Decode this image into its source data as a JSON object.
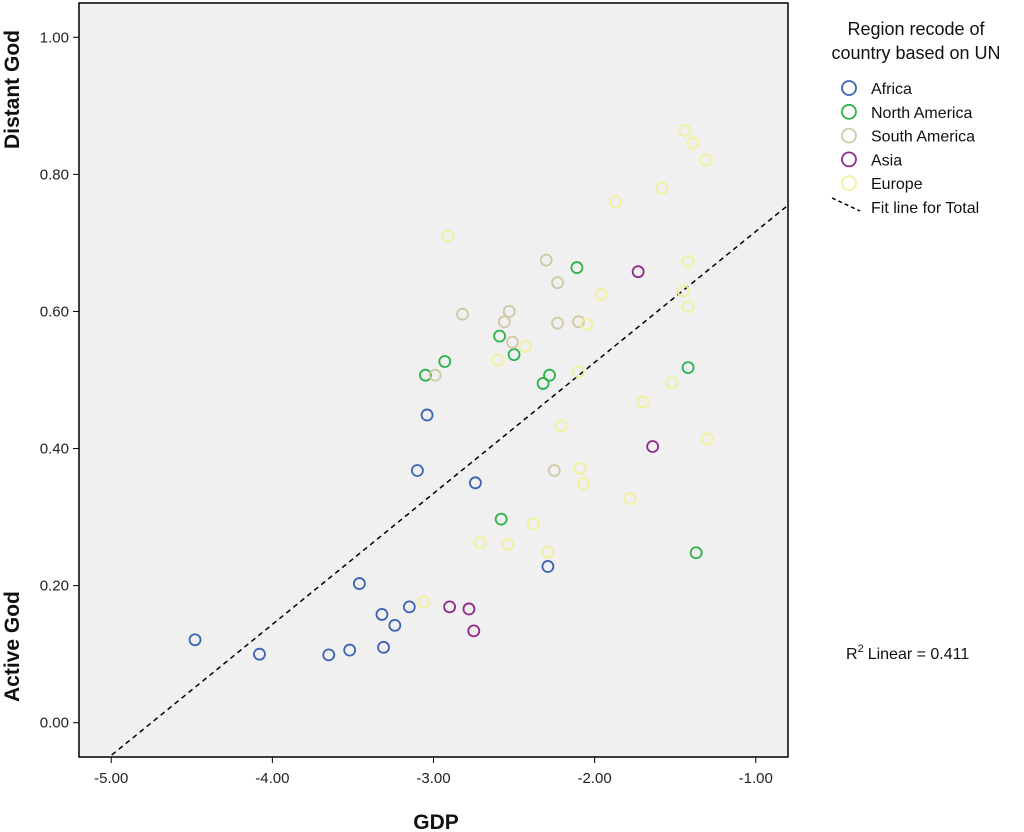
{
  "chart_data": {
    "type": "scatter",
    "title": "",
    "xlabel": "GDP",
    "ylabel_top": "Distant God",
    "ylabel_bottom": "Active God",
    "xlim": [
      -5.2,
      -0.8
    ],
    "ylim": [
      -0.05,
      1.05
    ],
    "x_ticks": [
      -5.0,
      -4.0,
      -3.0,
      -2.0,
      -1.0
    ],
    "x_tick_labels": [
      "-5.00",
      "-4.00",
      "-3.00",
      "-2.00",
      "-1.00"
    ],
    "y_ticks": [
      0.0,
      0.2,
      0.4,
      0.6,
      0.8,
      1.0
    ],
    "y_tick_labels": [
      "0.00",
      "0.20",
      "0.40",
      "0.60",
      "0.80",
      "1.00"
    ],
    "legend_title": [
      "Region recode of",
      "country based on UN"
    ],
    "legend_fit_label": "Fit line for Total",
    "r2_label": "Linear = 0.411",
    "r2_symbol": "R",
    "r2_superscript": "2",
    "fit_line": {
      "x": [
        -5.3,
        -0.8
      ],
      "y": [
        -0.105,
        0.755
      ]
    },
    "series": [
      {
        "name": "Africa",
        "color": "#3c64b4",
        "points": [
          [
            -4.48,
            0.121
          ],
          [
            -4.08,
            0.1
          ],
          [
            -3.65,
            0.099
          ],
          [
            -3.52,
            0.106
          ],
          [
            -3.46,
            0.203
          ],
          [
            -3.32,
            0.158
          ],
          [
            -3.31,
            0.11
          ],
          [
            -3.24,
            0.142
          ],
          [
            -3.15,
            0.169
          ],
          [
            -3.1,
            0.368
          ],
          [
            -3.04,
            0.449
          ],
          [
            -2.74,
            0.35
          ],
          [
            -2.29,
            0.228
          ]
        ]
      },
      {
        "name": "North America",
        "color": "#2ab34a",
        "points": [
          [
            -3.05,
            0.507
          ],
          [
            -2.93,
            0.527
          ],
          [
            -2.59,
            0.564
          ],
          [
            -2.58,
            0.297
          ],
          [
            -2.5,
            0.537
          ],
          [
            -2.32,
            0.495
          ],
          [
            -2.28,
            0.507
          ],
          [
            -2.11,
            0.664
          ],
          [
            -1.42,
            0.518
          ],
          [
            -1.37,
            0.248
          ]
        ]
      },
      {
        "name": "South America",
        "color": "#cfc9a5",
        "points": [
          [
            -2.99,
            0.507
          ],
          [
            -2.82,
            0.596
          ],
          [
            -2.56,
            0.585
          ],
          [
            -2.53,
            0.6
          ],
          [
            -2.51,
            0.555
          ],
          [
            -2.3,
            0.675
          ],
          [
            -2.25,
            0.368
          ],
          [
            -2.23,
            0.642
          ],
          [
            -2.23,
            0.583
          ],
          [
            -2.1,
            0.585
          ]
        ]
      },
      {
        "name": "Asia",
        "color": "#8e2b8a",
        "points": [
          [
            -2.9,
            0.169
          ],
          [
            -2.78,
            0.166
          ],
          [
            -2.75,
            0.134
          ],
          [
            -1.73,
            0.658
          ],
          [
            -1.64,
            0.403
          ]
        ]
      },
      {
        "name": "Europe",
        "color": "#f3f09a",
        "points": [
          [
            -3.06,
            0.176
          ],
          [
            -2.91,
            0.71
          ],
          [
            -2.71,
            0.263
          ],
          [
            -2.6,
            0.529
          ],
          [
            -2.54,
            0.26
          ],
          [
            -2.43,
            0.549
          ],
          [
            -2.38,
            0.29
          ],
          [
            -2.29,
            0.249
          ],
          [
            -2.21,
            0.433
          ],
          [
            -2.1,
            0.512
          ],
          [
            -2.09,
            0.371
          ],
          [
            -2.07,
            0.349
          ],
          [
            -2.05,
            0.581
          ],
          [
            -1.96,
            0.625
          ],
          [
            -1.87,
            0.76
          ],
          [
            -1.78,
            0.327
          ],
          [
            -1.7,
            0.468
          ],
          [
            -1.58,
            0.78
          ],
          [
            -1.52,
            0.496
          ],
          [
            -1.45,
            0.63
          ],
          [
            -1.44,
            0.864
          ],
          [
            -1.42,
            0.607
          ],
          [
            -1.42,
            0.673
          ],
          [
            -1.39,
            0.846
          ],
          [
            -1.31,
            0.821
          ],
          [
            -1.3,
            0.414
          ]
        ]
      }
    ]
  }
}
